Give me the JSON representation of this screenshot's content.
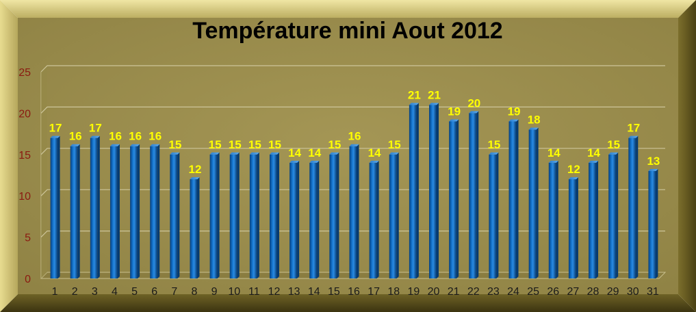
{
  "chart_data": {
    "type": "bar",
    "title": "Température mini Aout 2012",
    "xlabel": "",
    "ylabel": "",
    "ylim": [
      0,
      25
    ],
    "yticks": [
      "0",
      "5",
      "10",
      "15",
      "20",
      "25"
    ],
    "categories": [
      "1",
      "2",
      "3",
      "4",
      "5",
      "6",
      "7",
      "8",
      "9",
      "10",
      "11",
      "12",
      "13",
      "14",
      "15",
      "16",
      "17",
      "18",
      "19",
      "20",
      "21",
      "22",
      "23",
      "24",
      "25",
      "26",
      "27",
      "28",
      "29",
      "30",
      "31"
    ],
    "values": [
      17,
      16,
      17,
      16,
      16,
      16,
      15,
      12,
      15,
      15,
      15,
      15,
      14,
      14,
      15,
      16,
      14,
      15,
      21,
      21,
      19,
      20,
      15,
      19,
      18,
      14,
      12,
      14,
      15,
      17,
      13
    ],
    "grid": true,
    "legend": "none",
    "colors": {
      "bar": "#0b63b5",
      "bar_dark": "#063a70",
      "bar_light": "#2f8ae0",
      "data_label": "#ffff00",
      "frame": "#9a8a48",
      "frame_light": "#e6d98c",
      "frame_dark": "#4e4518",
      "gridline": "#cdc59a",
      "ytick": "#8b1a10"
    }
  }
}
